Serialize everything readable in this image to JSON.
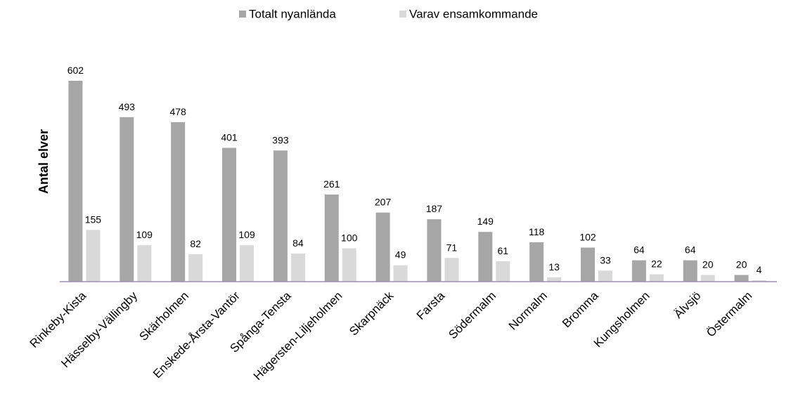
{
  "chart_data": {
    "type": "bar",
    "y_label": "Antal elver",
    "categories": [
      "Rinkeby-Kista",
      "Hässelby-Vällingby",
      "Skärholmen",
      "Enskede-Årsta-Vantör",
      "Spånga-Tensta",
      "Hägersten-Liljeholmen",
      "Skarpnäck",
      "Farsta",
      "Södermalm",
      "Normalm",
      "Bromma",
      "Kungsholmen",
      "Älvsjö",
      "Östermalm"
    ],
    "series": [
      {
        "name": "Totalt nyanlända",
        "color": "#a6a6a6",
        "values": [
          602,
          493,
          478,
          401,
          393,
          261,
          207,
          187,
          149,
          118,
          102,
          64,
          64,
          20
        ]
      },
      {
        "name": "Varav ensamkommande",
        "color": "#d9d9d9",
        "values": [
          155,
          109,
          82,
          109,
          84,
          100,
          49,
          71,
          61,
          13,
          33,
          22,
          20,
          4
        ]
      }
    ],
    "legend": "top"
  }
}
